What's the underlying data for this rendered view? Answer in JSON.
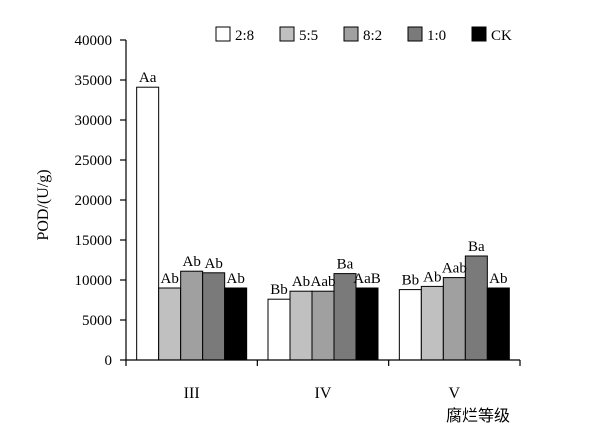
{
  "chart_data": {
    "type": "bar",
    "categories": [
      "III",
      "IV",
      "V"
    ],
    "xlabel": "腐烂等级",
    "ylabel": "POD/(U/g)",
    "ylim": [
      0,
      40000
    ],
    "yticks": [
      "0",
      "5000",
      "10000",
      "15000",
      "20000",
      "25000",
      "30000",
      "35000",
      "40000"
    ],
    "legend": "top-right",
    "grid": false,
    "series": [
      {
        "name": "2:8",
        "color": "#ffffff",
        "values": [
          34100,
          7600,
          8800
        ],
        "labels": [
          "Aa",
          "Bb",
          "Bb"
        ]
      },
      {
        "name": "5:5",
        "color": "#c0c0c0",
        "values": [
          9000,
          8600,
          9200
        ],
        "labels": [
          "Ab",
          "Ab",
          "Ab"
        ]
      },
      {
        "name": "8:2",
        "color": "#a0a0a0",
        "values": [
          11100,
          8600,
          10300
        ],
        "labels": [
          "Ab",
          "Aab",
          "Aab"
        ]
      },
      {
        "name": "1:0",
        "color": "#7a7a7a",
        "values": [
          10900,
          10800,
          13000
        ],
        "labels": [
          "Ab",
          "Ba",
          "Ba"
        ]
      },
      {
        "name": "CK",
        "color": "#000000",
        "values": [
          9000,
          9000,
          9000
        ],
        "labels": [
          "Ab",
          "AaB",
          "Ab"
        ]
      }
    ]
  }
}
